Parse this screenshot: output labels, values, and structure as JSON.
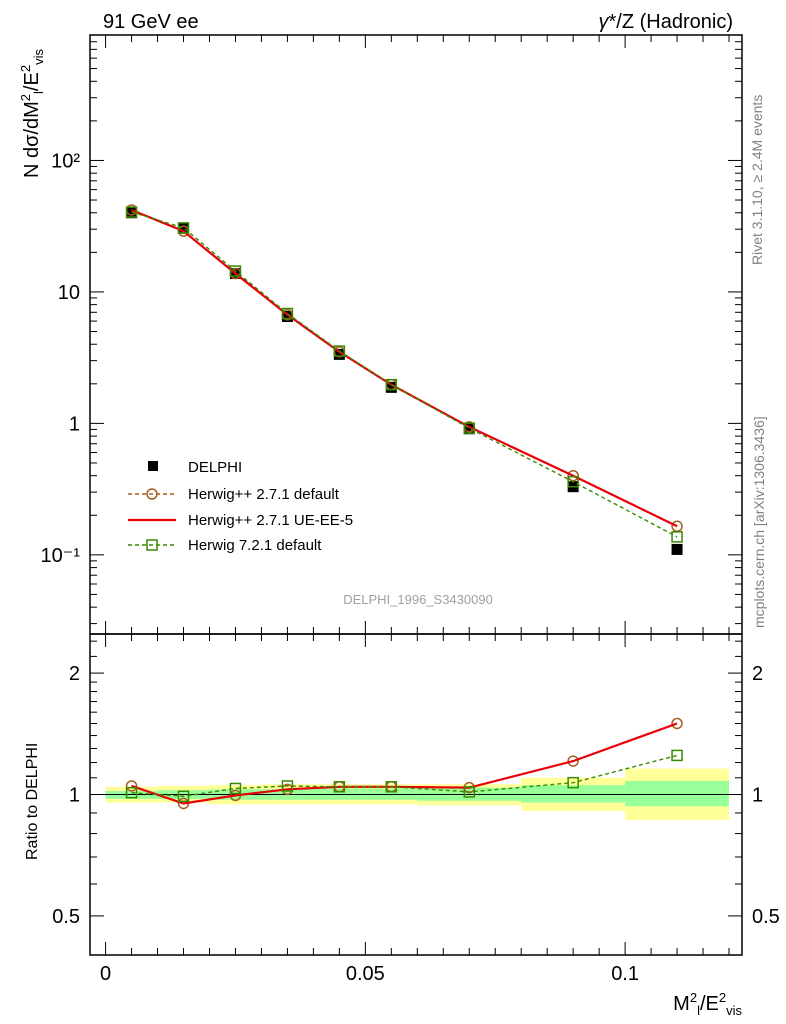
{
  "header": {
    "left": "91 GeV ee",
    "right_gamma": "γ",
    "right_rest": "*/Z (Hadronic)"
  },
  "side": {
    "rivet": "Rivet 3.1.10, ≥ 2.4M events",
    "mcplots": "mcplots.cern.ch [arXiv:1306.3436]"
  },
  "watermark": "DELPHI_1996_S3430090",
  "colors": {
    "data": "#000000",
    "herwigpp_default": "#a65e1f",
    "herwigpp_ueee5": "#e8000b",
    "herwig7": "#3a8a00",
    "band_outer": "#ffff99",
    "band_inner": "#99ff99"
  },
  "chart_data": [
    {
      "type": "line",
      "panel": "main",
      "ylabel": "N dσ/dM²/E²vis",
      "yscale": "log",
      "ylim": [
        0.025,
        900
      ],
      "xlim": [
        -0.003,
        0.1225
      ],
      "ytick_labels": [
        "10⁻¹",
        "1",
        "10",
        "10²"
      ],
      "yticks": [
        0.1,
        1,
        10,
        100
      ],
      "legend_position": "lower-left",
      "series": [
        {
          "name": "DELPHI",
          "style": "markers-square",
          "x": [
            0.005,
            0.015,
            0.025,
            0.035,
            0.045,
            0.055,
            0.07,
            0.09,
            0.11
          ],
          "y": [
            40.0,
            30.5,
            13.8,
            6.5,
            3.35,
            1.88,
            0.91,
            0.33,
            0.11
          ]
        },
        {
          "name": "Herwig++ 2.7.1 default",
          "style": "dashed-circle",
          "x": [
            0.005,
            0.015,
            0.025,
            0.035,
            0.045,
            0.055,
            0.07,
            0.09,
            0.11
          ],
          "y": [
            42.0,
            29.0,
            13.8,
            6.7,
            3.5,
            1.97,
            0.94,
            0.4,
            0.165
          ]
        },
        {
          "name": "Herwig++ 2.7.1 UE-EE-5",
          "style": "solid",
          "x": [
            0.005,
            0.015,
            0.025,
            0.035,
            0.045,
            0.055,
            0.07,
            0.09,
            0.11
          ],
          "y": [
            42.0,
            29.0,
            13.8,
            6.7,
            3.5,
            1.97,
            0.94,
            0.4,
            0.165
          ]
        },
        {
          "name": "Herwig 7.2.1 default",
          "style": "dashed-square",
          "x": [
            0.005,
            0.015,
            0.025,
            0.035,
            0.045,
            0.055,
            0.07,
            0.09,
            0.11
          ],
          "y": [
            40.5,
            30.7,
            14.4,
            6.85,
            3.55,
            1.97,
            0.92,
            0.36,
            0.137
          ]
        }
      ]
    },
    {
      "type": "line",
      "panel": "ratio",
      "ylabel": "Ratio to DELPHI",
      "xlabel": "M²l/E²vis",
      "yscale": "log",
      "ylim": [
        0.4,
        2.5
      ],
      "xlim": [
        -0.003,
        0.1225
      ],
      "ytick_labels": [
        "0.5",
        "1",
        "2"
      ],
      "yticks": [
        0.5,
        1,
        2
      ],
      "xtick_labels": [
        "0",
        "0.05",
        "0.1"
      ],
      "xticks": [
        0,
        0.05,
        0.1
      ],
      "bands": {
        "bin_edges": [
          0.0,
          0.01,
          0.02,
          0.03,
          0.04,
          0.05,
          0.06,
          0.08,
          0.1,
          0.12
        ],
        "outer_lo": [
          0.955,
          0.955,
          0.945,
          0.945,
          0.945,
          0.945,
          0.94,
          0.91,
          0.865
        ],
        "outer_hi": [
          1.045,
          1.05,
          1.055,
          1.06,
          1.06,
          1.06,
          1.06,
          1.1,
          1.16
        ],
        "inner_lo": [
          0.975,
          0.975,
          0.97,
          0.97,
          0.97,
          0.97,
          0.965,
          0.955,
          0.935
        ],
        "inner_hi": [
          1.02,
          1.025,
          1.03,
          1.03,
          1.035,
          1.035,
          1.04,
          1.055,
          1.08
        ]
      },
      "series": [
        {
          "name": "Herwig++ 2.7.1 default",
          "style": "dashed-circle",
          "x": [
            0.005,
            0.015,
            0.025,
            0.035,
            0.045,
            0.055,
            0.07,
            0.09,
            0.11
          ],
          "y": [
            1.05,
            0.95,
            0.995,
            1.03,
            1.045,
            1.045,
            1.04,
            1.21,
            1.5
          ]
        },
        {
          "name": "Herwig++ 2.7.1 UE-EE-5",
          "style": "solid",
          "x": [
            0.005,
            0.015,
            0.025,
            0.035,
            0.045,
            0.055,
            0.07,
            0.09,
            0.11
          ],
          "y": [
            1.05,
            0.95,
            0.995,
            1.03,
            1.045,
            1.045,
            1.04,
            1.21,
            1.5
          ]
        },
        {
          "name": "Herwig 7.2.1 default",
          "style": "dashed-square",
          "x": [
            0.005,
            0.015,
            0.025,
            0.035,
            0.045,
            0.055,
            0.07,
            0.09,
            0.11
          ],
          "y": [
            1.01,
            0.99,
            1.035,
            1.05,
            1.045,
            1.045,
            1.015,
            1.07,
            1.25
          ]
        }
      ]
    }
  ]
}
